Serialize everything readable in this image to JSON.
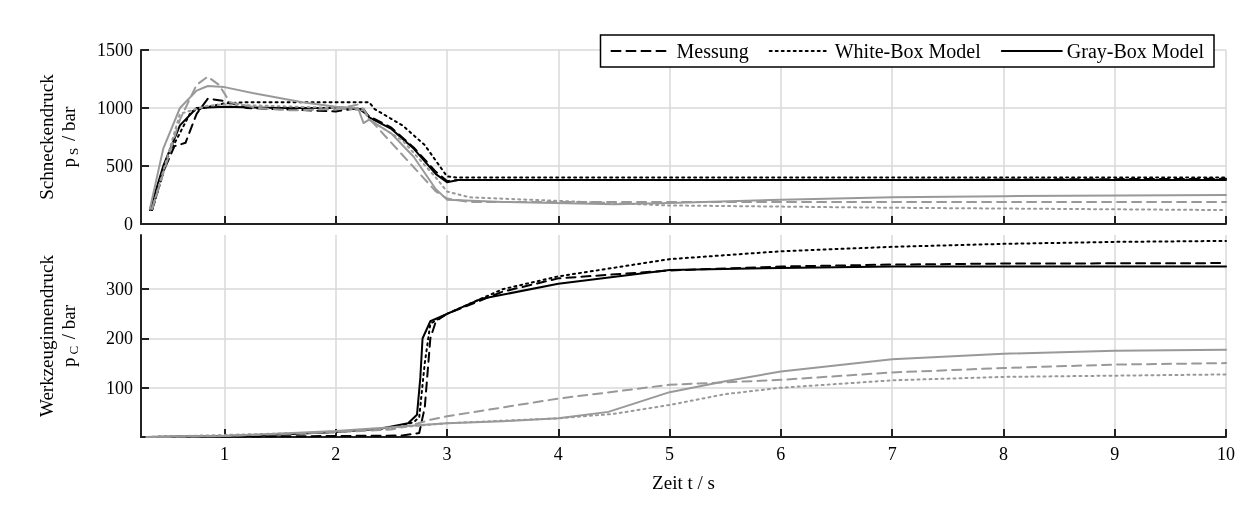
{
  "chart_data": [
    {
      "type": "line",
      "ylabel": "Schneckendruck p$_{S}$ / bar",
      "xlim": [
        0.25,
        10
      ],
      "xticks": [
        1,
        2,
        3,
        4,
        5,
        6,
        7,
        8,
        9,
        10
      ],
      "ylim": [
        0,
        1500
      ],
      "yticks": [
        0,
        500,
        1000,
        1500
      ],
      "tick_labels": "y",
      "grid": true,
      "legend": "top right",
      "series": [
        {
          "name": "Messung",
          "color": "#000000",
          "line_style": "dashed",
          "x": [
            0.35,
            0.45,
            0.55,
            0.65,
            0.75,
            0.85,
            1.0,
            1.2,
            1.5,
            2.0,
            2.2,
            2.3,
            2.5,
            2.7,
            2.9,
            3.0,
            3.1,
            5,
            7,
            10
          ],
          "values": [
            120,
            450,
            670,
            700,
            950,
            1080,
            1060,
            1000,
            990,
            970,
            1000,
            930,
            830,
            660,
            450,
            370,
            380,
            380,
            380,
            390
          ]
        },
        {
          "name": "White-Box Model",
          "color": "#000000",
          "line_style": "dotted",
          "x": [
            0.35,
            0.5,
            0.7,
            0.9,
            1.0,
            1.2,
            2.0,
            2.3,
            2.35,
            2.6,
            2.8,
            3.0,
            3.1,
            6,
            10
          ],
          "values": [
            120,
            600,
            970,
            1020,
            1040,
            1050,
            1050,
            1050,
            990,
            850,
            680,
            410,
            400,
            400,
            400
          ]
        },
        {
          "name": "Gray-Box Model",
          "color": "#000000",
          "line_style": "solid",
          "x": [
            0.33,
            0.45,
            0.6,
            0.75,
            1.0,
            1.5,
            2.0,
            2.25,
            2.3,
            2.5,
            2.7,
            2.9,
            3.0,
            3.1,
            4,
            6,
            8,
            10
          ],
          "values": [
            120,
            500,
            850,
            1000,
            1010,
            1000,
            1000,
            990,
            920,
            820,
            650,
            430,
            360,
            380,
            380,
            380,
            380,
            380
          ]
        },
        {
          "color": "#999999",
          "line_style": "dashed",
          "x": [
            0.35,
            0.6,
            0.75,
            0.85,
            0.95,
            1.05,
            1.3,
            1.6,
            2.0,
            2.2,
            2.25,
            2.3,
            2.9,
            3.0,
            3.2,
            5,
            7,
            10
          ],
          "values": [
            130,
            900,
            1200,
            1270,
            1200,
            1050,
            1000,
            980,
            990,
            1030,
            990,
            910,
            280,
            220,
            190,
            190,
            190,
            190
          ]
        },
        {
          "color": "#999999",
          "line_style": "dotted",
          "x": [
            0.35,
            0.6,
            0.85,
            1.0,
            2.0,
            2.25,
            2.3,
            2.6,
            2.9,
            3.0,
            3.2,
            5,
            7,
            10
          ],
          "values": [
            130,
            950,
            1020,
            1030,
            1000,
            980,
            900,
            720,
            400,
            280,
            230,
            160,
            140,
            120
          ]
        },
        {
          "color": "#999999",
          "line_style": "solid",
          "x": [
            0.33,
            0.45,
            0.6,
            0.75,
            0.85,
            1.0,
            1.3,
            1.7,
            2.0,
            2.2,
            2.25,
            2.3,
            2.5,
            2.7,
            2.9,
            3.0,
            3.5,
            4.5,
            5,
            6,
            7,
            8,
            10
          ],
          "values": [
            130,
            650,
            1000,
            1150,
            1190,
            1180,
            1120,
            1050,
            1010,
            1000,
            870,
            900,
            780,
            580,
            300,
            210,
            190,
            170,
            180,
            210,
            230,
            240,
            250
          ]
        }
      ]
    },
    {
      "type": "line",
      "xlabel": "Zeit t / s",
      "ylabel": "Werkzeuginnendruck p$_{C}$ / bar",
      "xlim": [
        0.25,
        10
      ],
      "xticks": [
        1,
        2,
        3,
        4,
        5,
        6,
        7,
        8,
        9,
        10
      ],
      "ylim": [
        0,
        410
      ],
      "yticks": [
        100,
        200,
        300
      ],
      "grid": true,
      "series": [
        {
          "color": "#000000",
          "line_style": "dashed",
          "x": [
            0.3,
            2,
            2.6,
            2.75,
            2.8,
            2.85,
            2.9,
            3.0,
            3.5,
            4,
            5,
            6,
            7,
            8,
            10
          ],
          "values": [
            0,
            2,
            3,
            8,
            60,
            200,
            235,
            250,
            295,
            322,
            338,
            346,
            350,
            352,
            353
          ]
        },
        {
          "color": "#000000",
          "line_style": "dotted",
          "x": [
            0.3,
            1,
            2,
            2.5,
            2.7,
            2.75,
            2.8,
            2.85,
            3.0,
            3.5,
            4,
            5,
            6,
            7,
            8,
            9,
            10
          ],
          "values": [
            0,
            2,
            10,
            18,
            30,
            40,
            150,
            230,
            250,
            300,
            326,
            361,
            377,
            386,
            392,
            396,
            398
          ]
        },
        {
          "color": "#000000",
          "line_style": "solid",
          "x": [
            0.3,
            1,
            1.5,
            2,
            2.4,
            2.65,
            2.73,
            2.76,
            2.78,
            2.85,
            3,
            3.3,
            4,
            5,
            6,
            7,
            10
          ],
          "values": [
            0,
            2,
            5,
            10,
            17,
            28,
            45,
            120,
            200,
            235,
            250,
            280,
            311,
            339,
            343,
            346,
            346
          ]
        },
        {
          "color": "#999999",
          "line_style": "dashed",
          "x": [
            0.3,
            1,
            2,
            2.5,
            2.7,
            2.85,
            3,
            3.5,
            4,
            5,
            6,
            7,
            8,
            9,
            10
          ],
          "values": [
            0,
            2,
            10,
            15,
            25,
            35,
            42,
            60,
            78,
            106,
            116,
            131,
            140,
            147,
            150
          ]
        },
        {
          "color": "#999999",
          "line_style": "dotted",
          "x": [
            0.3,
            2,
            2.8,
            3,
            4,
            4.5,
            5,
            5.5,
            6,
            7,
            8,
            10
          ],
          "values": [
            0,
            10,
            24,
            28,
            38,
            47,
            65,
            87,
            100,
            115,
            122,
            127
          ]
        },
        {
          "color": "#999999",
          "line_style": "solid",
          "x": [
            0.3,
            1,
            2,
            2.5,
            2.8,
            3,
            3.5,
            4,
            4.45,
            5,
            5.5,
            6,
            7,
            8,
            9,
            10
          ],
          "values": [
            0,
            2,
            12,
            20,
            25,
            28,
            32,
            38,
            51,
            91,
            113,
            133,
            158,
            169,
            175,
            177
          ]
        }
      ]
    }
  ]
}
